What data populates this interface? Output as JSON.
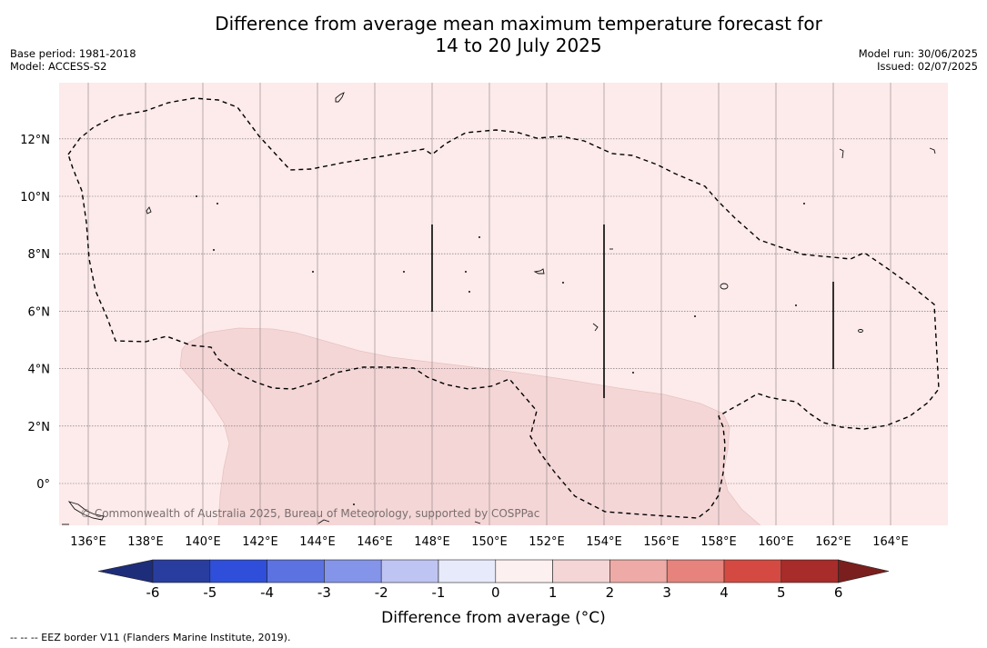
{
  "title": {
    "line1": "Difference from average mean maximum temperature forecast for",
    "line2": "14 to 20 July 2025"
  },
  "meta_left": {
    "base_period": "Base period: 1981-2018",
    "model": "Model: ACCESS-S2"
  },
  "meta_right": {
    "model_run": "Model run: 30/06/2025",
    "issued": "Issued: 02/07/2025"
  },
  "map": {
    "lon_labels": [
      "136°E",
      "138°E",
      "140°E",
      "142°E",
      "144°E",
      "146°E",
      "148°E",
      "150°E",
      "152°E",
      "154°E",
      "156°E",
      "158°E",
      "160°E",
      "162°E",
      "164°E"
    ],
    "lat_labels": [
      "12°N",
      "10°N",
      "8°N",
      "6°N",
      "4°N",
      "2°N",
      "0°"
    ],
    "background_category": "0 to 1",
    "shaded_region_category": "1 to 2",
    "colors": {
      "zero_to_one": "#fcebea",
      "one_to_two": "#f4d6d6"
    },
    "copyright": "© Commonwealth of Australia 2025, Bureau of Meteorology, supported by COSPPac"
  },
  "colorbar": {
    "title": "Difference from average (°C)",
    "ticks": [
      "-6",
      "-5",
      "-4",
      "-3",
      "-2",
      "-1",
      "0",
      "1",
      "2",
      "3",
      "4",
      "5",
      "6"
    ],
    "colors": [
      "#283d9e",
      "#2f4fdb",
      "#5b72e0",
      "#8494e8",
      "#bfc5f2",
      "#e7eafa",
      "#fdf0f0",
      "#f4d6d6",
      "#eeaaa6",
      "#e5837c",
      "#d44a43",
      "#a82c2a"
    ],
    "extend_low_color": "#1e2d7a",
    "extend_high_color": "#7a1f1d"
  },
  "footnote": "--  --  -- EEZ border V11 (Flanders Marine Institute, 2019)."
}
